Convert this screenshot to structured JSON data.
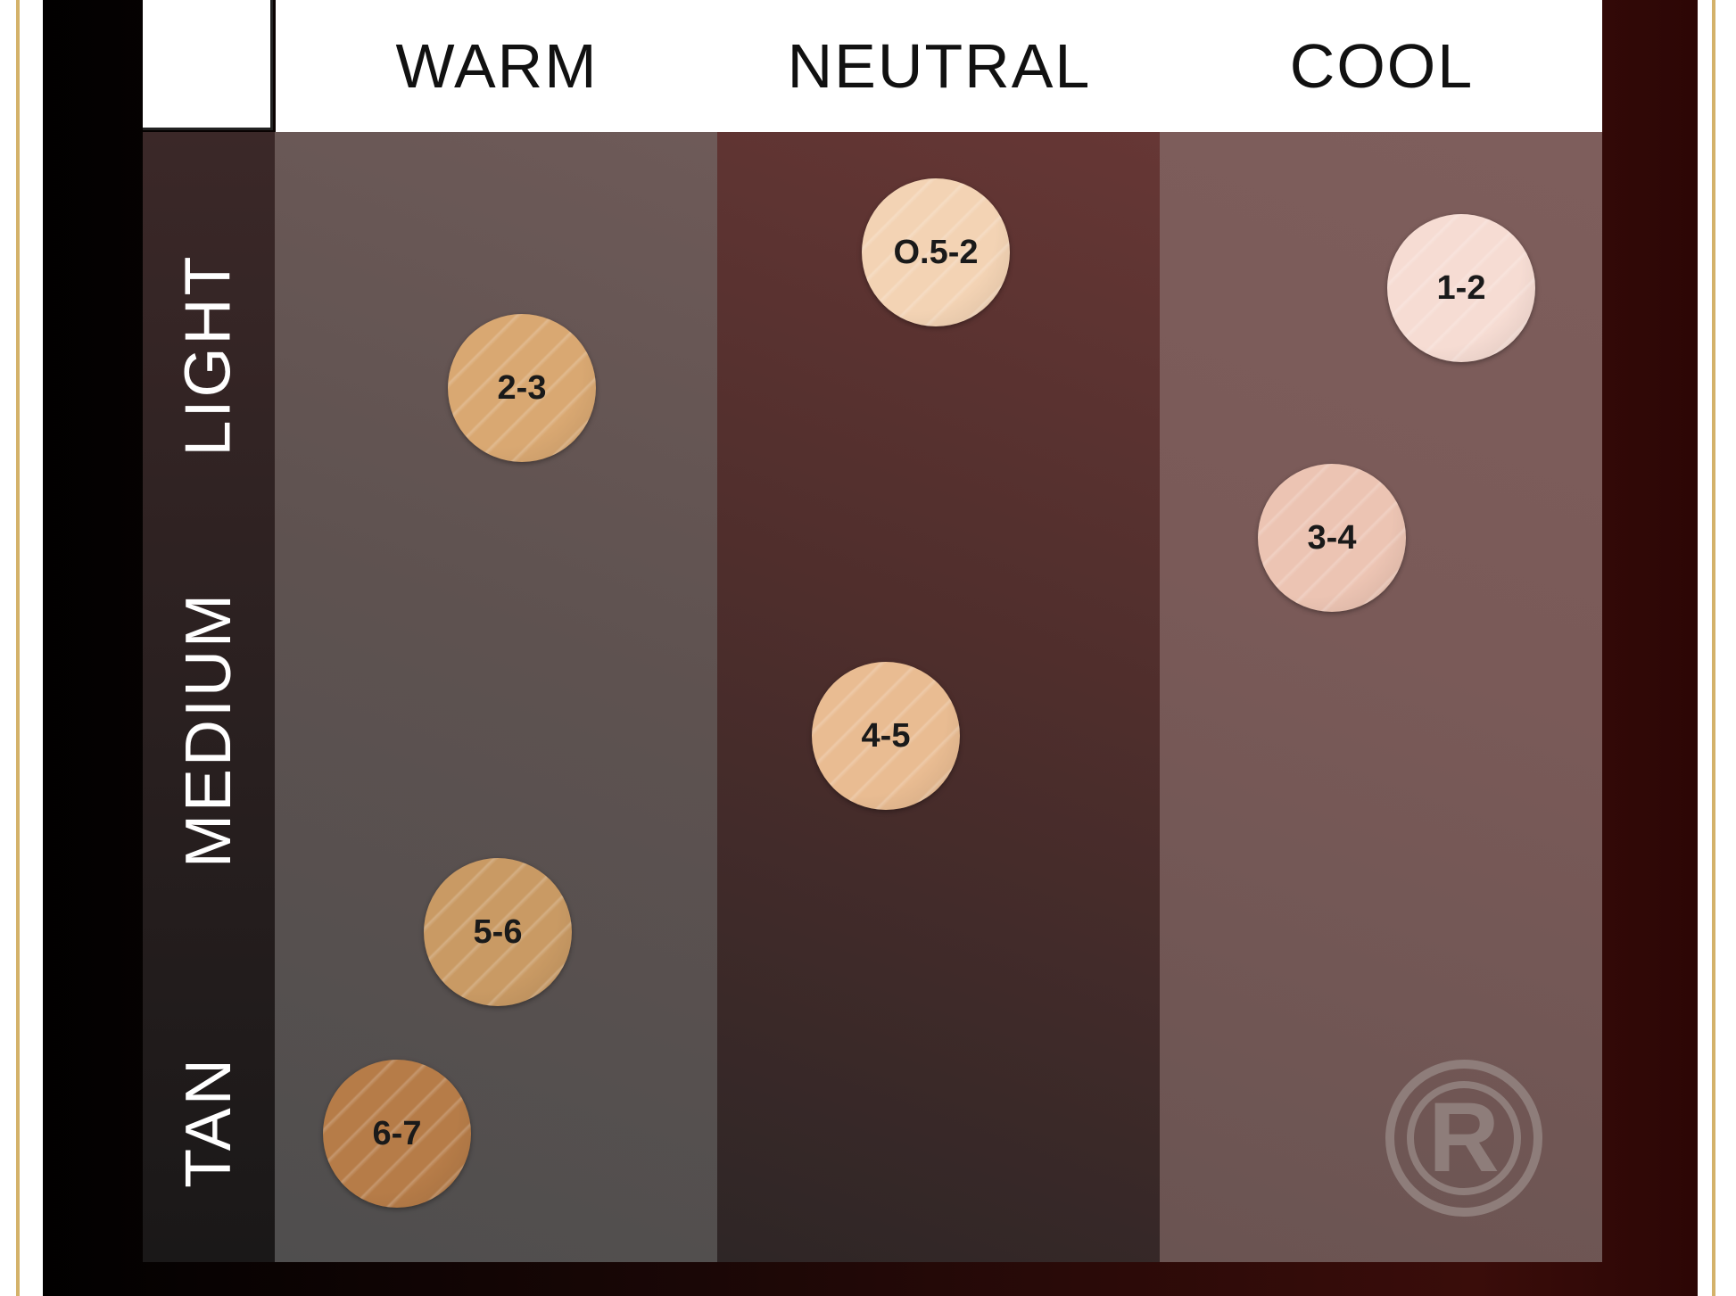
{
  "columns": [
    "WARM",
    "NEUTRAL",
    "COOL"
  ],
  "rows": [
    "LIGHT",
    "MEDIUM",
    "TAN"
  ],
  "swatches": [
    {
      "label": "2-3",
      "column": "WARM",
      "color": "#d9a872"
    },
    {
      "label": "5-6",
      "column": "WARM",
      "color": "#c99a64"
    },
    {
      "label": "6-7",
      "column": "WARM",
      "color": "#b67c48"
    },
    {
      "label": "O.5-2",
      "column": "NEUTRAL",
      "color": "#f3d3b4"
    },
    {
      "label": "4-5",
      "column": "NEUTRAL",
      "color": "#e9bc92"
    },
    {
      "label": "1-2",
      "column": "COOL",
      "color": "#f6dcd3"
    },
    {
      "label": "3-4",
      "column": "COOL",
      "color": "#ecc4b3"
    }
  ],
  "colors": {
    "header_bg": "#ffffff",
    "gold_border": "#d4b26a",
    "logo": "#8e7d7a"
  }
}
